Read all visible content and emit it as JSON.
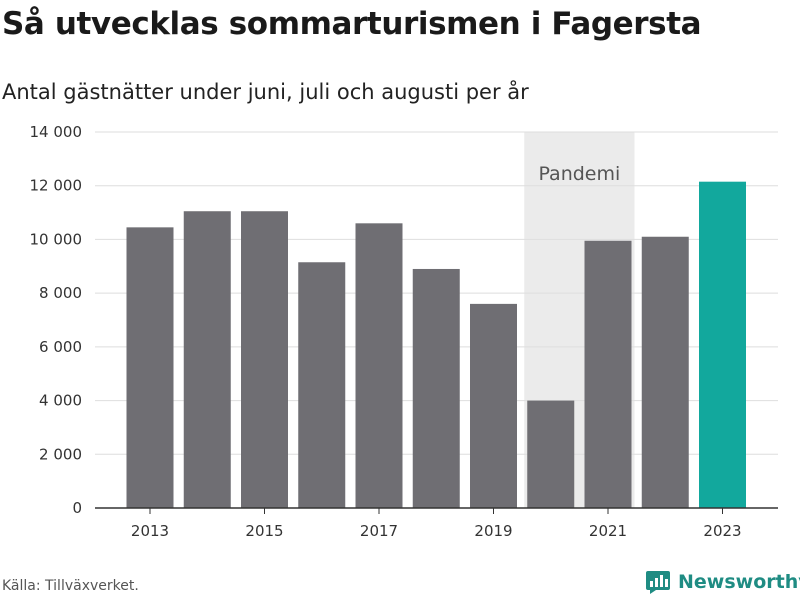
{
  "title": "Så utvecklas sommarturismen i Fagersta",
  "subtitle": "Antal gästnätter under juni, juli och augusti per år",
  "source": "Källa: Tillväxverket.",
  "brand": {
    "name": "Newsworthy",
    "icon": "newsworthy-logo-icon",
    "color": "#1f8c83"
  },
  "colors": {
    "bar": "#6f6e73",
    "highlight": "#12a89d",
    "band": "#ebebeb",
    "grid": "#dedede"
  },
  "chart_data": {
    "type": "bar",
    "categories": [
      2013,
      2014,
      2015,
      2016,
      2017,
      2018,
      2019,
      2020,
      2021,
      2022,
      2023
    ],
    "values": [
      10450,
      11050,
      11050,
      9150,
      10600,
      8900,
      7600,
      4000,
      9950,
      10100,
      12150
    ],
    "highlight_index": 10,
    "ylim": [
      0,
      14000
    ],
    "yticks": [
      0,
      2000,
      4000,
      6000,
      8000,
      10000,
      12000,
      14000
    ],
    "ytick_labels": [
      "0",
      "2 000",
      "4 000",
      "6 000",
      "8 000",
      "10 000",
      "12 000",
      "14 000"
    ],
    "xtick_labels": [
      "2013",
      "2015",
      "2017",
      "2019",
      "2021",
      "2023"
    ],
    "xlabel": "",
    "ylabel": "",
    "grid": true,
    "legend": "none",
    "annotation": {
      "label": "Pandemi",
      "from": 2020,
      "to": 2021
    }
  }
}
